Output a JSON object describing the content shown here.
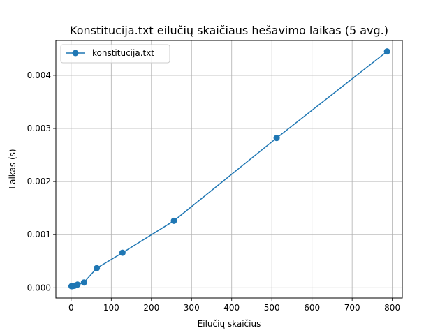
{
  "chart_data": {
    "type": "line",
    "title": "Konstitucija.txt eilučių skaičiaus hešavimo laikas (5 avg.)",
    "xlabel": "Eilučių skaičius",
    "ylabel": "Laikas (s)",
    "xlim": [
      -38,
      825
    ],
    "ylim": [
      -0.000193,
      0.004656
    ],
    "xticks": [
      0,
      100,
      200,
      300,
      400,
      500,
      600,
      700,
      800
    ],
    "xtick_labels": [
      "0",
      "100",
      "200",
      "300",
      "400",
      "500",
      "600",
      "700",
      "800"
    ],
    "yticks": [
      0,
      0.001,
      0.002,
      0.003,
      0.004
    ],
    "ytick_labels": [
      "0.000",
      "0.001",
      "0.002",
      "0.003",
      "0.004"
    ],
    "grid": true,
    "legend_position": "upper-left",
    "series": [
      {
        "name": "konstitucija.txt",
        "color": "#1f77b4",
        "marker": "circle",
        "x": [
          1,
          2,
          4,
          8,
          16,
          32,
          64,
          128,
          256,
          512,
          787
        ],
        "y": [
          3e-05,
          3.1e-05,
          3.3e-05,
          3.8e-05,
          6e-05,
          0.0001,
          0.00037,
          0.00066,
          0.00126,
          0.00282,
          0.00445
        ]
      }
    ]
  }
}
